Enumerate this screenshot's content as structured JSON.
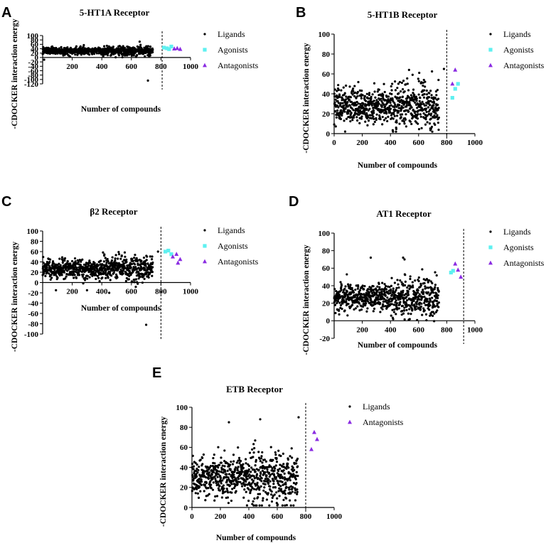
{
  "colors": {
    "ligands": "#000000",
    "agonists": "#5ef0f0",
    "antagonists": "#8a2be2"
  },
  "chart_data": [
    {
      "type": "scatter",
      "panel": "A",
      "title": "5-HT1A Receptor",
      "xlabel": "Number of compounds",
      "ylabel": "-CDOCKER interaction energy",
      "xlim": [
        0,
        1000
      ],
      "ylim": [
        -120,
        100
      ],
      "yticks": [
        100,
        80,
        60,
        40,
        20,
        0,
        -20,
        -40,
        -60,
        -80,
        -100,
        -120
      ],
      "xticks": [
        200,
        400,
        600,
        800,
        1000
      ],
      "cutoff_x": 808,
      "ligand_count": 740,
      "ligand_mean": 30,
      "ligand_sd": 9,
      "outliers": [
        [
          10,
          -10
        ],
        [
          720,
          5
        ],
        [
          712,
          -105
        ]
      ],
      "legend": [
        "Ligands",
        "Agonists",
        "Antagonists"
      ],
      "series": [
        {
          "name": "Agonists",
          "marker": "square",
          "points": [
            [
              820,
              45
            ],
            [
              840,
              42
            ],
            [
              855,
              38
            ],
            [
              870,
              50
            ]
          ]
        },
        {
          "name": "Antagonists",
          "marker": "triangle",
          "points": [
            [
              890,
              40
            ],
            [
              910,
              42
            ],
            [
              930,
              38
            ]
          ]
        }
      ]
    },
    {
      "type": "scatter",
      "panel": "B",
      "title": "5-HT1B Receptor",
      "xlabel": "Number of compounds",
      "ylabel": "-CDOCKER interaction energy",
      "xlim": [
        0,
        1000
      ],
      "ylim": [
        0,
        100
      ],
      "yticks": [
        0,
        20,
        40,
        60,
        80,
        100
      ],
      "xticks": [
        0,
        200,
        400,
        600,
        800,
        1000
      ],
      "cutoff_x": 800,
      "ligand_count": 740,
      "ligand_mean": 28,
      "ligand_sd": 10,
      "outliers": [
        [
          780,
          65
        ]
      ],
      "legend": [
        "Ligands",
        "Agonists",
        "Antagonists"
      ],
      "series": [
        {
          "name": "Agonists",
          "marker": "square",
          "points": [
            [
              840,
              36
            ],
            [
              860,
              45
            ],
            [
              880,
              50
            ]
          ]
        },
        {
          "name": "Antagonists",
          "marker": "triangle",
          "points": [
            [
              840,
              50
            ],
            [
              860,
              64
            ]
          ]
        }
      ]
    },
    {
      "type": "scatter",
      "panel": "C",
      "title": "β2 Receptor",
      "xlabel": "Number of compounds",
      "ylabel": "-CDOCKER interaction energy",
      "xlim": [
        0,
        1000
      ],
      "ylim": [
        -100,
        100
      ],
      "yticks": [
        100,
        80,
        60,
        40,
        20,
        0,
        -20,
        -40,
        -60,
        -80,
        -100
      ],
      "xticks": [
        200,
        400,
        600,
        800,
        1000
      ],
      "cutoff_x": 800,
      "ligand_count": 740,
      "ligand_mean": 27,
      "ligand_sd": 10,
      "outliers": [
        [
          700,
          -82
        ],
        [
          780,
          60
        ],
        [
          300,
          -15
        ],
        [
          450,
          -20
        ],
        [
          90,
          -15
        ]
      ],
      "legend": [
        "Ligands",
        "Agonists",
        "Antagonists"
      ],
      "series": [
        {
          "name": "Agonists",
          "marker": "square",
          "points": [
            [
              830,
              60
            ],
            [
              850,
              62
            ],
            [
              870,
              55
            ]
          ]
        },
        {
          "name": "Antagonists",
          "marker": "triangle",
          "points": [
            [
              880,
              50
            ],
            [
              905,
              55
            ],
            [
              930,
              45
            ],
            [
              915,
              38
            ]
          ]
        }
      ]
    },
    {
      "type": "scatter",
      "panel": "D",
      "title": "AT1 Receptor",
      "xlabel": "Number of compounds",
      "ylabel": "-CDOCKER interaction energy",
      "xlim": [
        0,
        1000
      ],
      "ylim": [
        -20,
        100
      ],
      "yticks": [
        100,
        80,
        60,
        40,
        20,
        0,
        -20
      ],
      "xticks": [
        200,
        400,
        600,
        800,
        1000
      ],
      "cutoff_x": 920,
      "ligand_count": 740,
      "ligand_mean": 27,
      "ligand_sd": 9,
      "outliers": [
        [
          260,
          72
        ],
        [
          490,
          72
        ],
        [
          500,
          70
        ]
      ],
      "legend": [
        "Ligands",
        "Agonists",
        "Antagonists"
      ],
      "series": [
        {
          "name": "Agonists",
          "marker": "square",
          "points": [
            [
              830,
              55
            ],
            [
              845,
              57
            ]
          ]
        },
        {
          "name": "Antagonists",
          "marker": "triangle",
          "points": [
            [
              860,
              65
            ],
            [
              880,
              58
            ],
            [
              900,
              50
            ]
          ]
        }
      ]
    },
    {
      "type": "scatter",
      "panel": "E",
      "title": "ETB Receptor",
      "xlabel": "Number of compounds",
      "ylabel": "-CDOCKER interaction energy",
      "xlim": [
        0,
        1000
      ],
      "ylim": [
        0,
        100
      ],
      "yticks": [
        0,
        20,
        40,
        60,
        80,
        100
      ],
      "xticks": [
        0,
        200,
        400,
        600,
        800,
        1000
      ],
      "cutoff_x": 800,
      "ligand_count": 740,
      "ligand_mean": 30,
      "ligand_sd": 11,
      "outliers": [
        [
          750,
          90
        ],
        [
          480,
          88
        ],
        [
          260,
          85
        ]
      ],
      "legend": [
        "Ligands",
        "Antagonists"
      ],
      "series": [
        {
          "name": "Antagonists",
          "marker": "triangle",
          "points": [
            [
              840,
              58
            ],
            [
              860,
              75
            ],
            [
              880,
              68
            ]
          ]
        }
      ]
    }
  ]
}
